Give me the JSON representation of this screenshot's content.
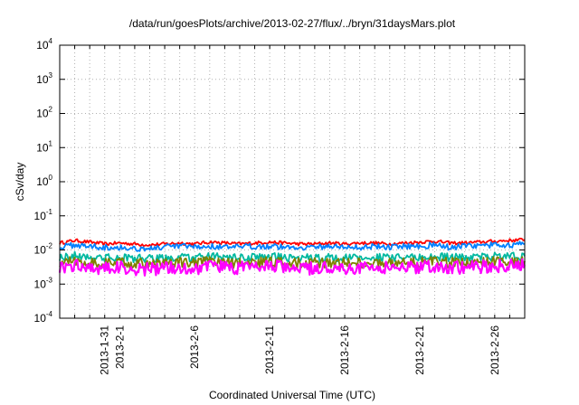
{
  "chart_data": {
    "type": "line",
    "title": "/data/run/goesPlots/archive/2013-02-27/flux/../bryn/31daysMars.plot",
    "xlabel": "Coordinated Universal Time (UTC)",
    "ylabel": "cSv/day",
    "y_scale": "log",
    "ylim": [
      0.0001,
      10000
    ],
    "xlim": [
      "2013-01-28",
      "2013-02-28"
    ],
    "grid": true,
    "legend": "none",
    "y_ticks": [
      {
        "base": "10",
        "exp": "-4",
        "value": 0.0001
      },
      {
        "base": "10",
        "exp": "-3",
        "value": 0.001
      },
      {
        "base": "10",
        "exp": "-2",
        "value": 0.01
      },
      {
        "base": "10",
        "exp": "-1",
        "value": 0.1
      },
      {
        "base": "10",
        "exp": "0",
        "value": 1
      },
      {
        "base": "10",
        "exp": "1",
        "value": 10
      },
      {
        "base": "10",
        "exp": "2",
        "value": 100
      },
      {
        "base": "10",
        "exp": "3",
        "value": 1000
      },
      {
        "base": "10",
        "exp": "4",
        "value": 10000
      }
    ],
    "x_tick_labels": [
      {
        "date": "2013-01-31",
        "label": "2013-1-31"
      },
      {
        "date": "2013-02-01",
        "label": "2013-2-1"
      },
      {
        "date": "2013-02-06",
        "label": "2013-2-6"
      },
      {
        "date": "2013-02-11",
        "label": "2013-2-11"
      },
      {
        "date": "2013-02-16",
        "label": "2013-2-16"
      },
      {
        "date": "2013-02-21",
        "label": "2013-2-21"
      },
      {
        "date": "2013-02-26",
        "label": "2013-2-26"
      }
    ],
    "x_grid_dates": [
      "2013-01-29",
      "2013-01-30",
      "2013-01-31",
      "2013-02-01",
      "2013-02-02",
      "2013-02-03",
      "2013-02-04",
      "2013-02-05",
      "2013-02-06",
      "2013-02-07",
      "2013-02-08",
      "2013-02-09",
      "2013-02-10",
      "2013-02-11",
      "2013-02-12",
      "2013-02-13",
      "2013-02-14",
      "2013-02-15",
      "2013-02-16",
      "2013-02-17",
      "2013-02-18",
      "2013-02-19",
      "2013-02-20",
      "2013-02-21",
      "2013-02-22",
      "2013-02-23",
      "2013-02-24",
      "2013-02-25",
      "2013-02-26",
      "2013-02-27"
    ],
    "series": [
      {
        "color": "#ff0000",
        "values": [
          0.016,
          0.019,
          0.017,
          0.015,
          0.016,
          0.015,
          0.014,
          0.015,
          0.016,
          0.015,
          0.017,
          0.016,
          0.015,
          0.016,
          0.017,
          0.016,
          0.015,
          0.015,
          0.016,
          0.015,
          0.016,
          0.016,
          0.015,
          0.016,
          0.017,
          0.018,
          0.016,
          0.016,
          0.017,
          0.018,
          0.019,
          0.02
        ]
      },
      {
        "color": "#0080ff",
        "values": [
          0.012,
          0.014,
          0.013,
          0.012,
          0.012,
          0.011,
          0.011,
          0.012,
          0.013,
          0.012,
          0.013,
          0.012,
          0.012,
          0.013,
          0.013,
          0.012,
          0.012,
          0.012,
          0.013,
          0.012,
          0.012,
          0.013,
          0.012,
          0.013,
          0.013,
          0.014,
          0.012,
          0.013,
          0.013,
          0.014,
          0.014,
          0.015
        ]
      },
      {
        "color": "#00b8a0",
        "values": [
          0.006,
          0.0068,
          0.0062,
          0.0058,
          0.006,
          0.0057,
          0.0055,
          0.0058,
          0.006,
          0.0058,
          0.0063,
          0.006,
          0.0058,
          0.0061,
          0.0063,
          0.006,
          0.0058,
          0.0058,
          0.006,
          0.0058,
          0.006,
          0.006,
          0.0058,
          0.006,
          0.0062,
          0.0064,
          0.006,
          0.006,
          0.0062,
          0.0064,
          0.0065,
          0.0066
        ]
      },
      {
        "color": "#808000",
        "values": [
          0.0042,
          0.0048,
          0.0044,
          0.0041,
          0.0042,
          0.004,
          0.0039,
          0.0041,
          0.0043,
          0.0041,
          0.0045,
          0.0043,
          0.0041,
          0.0043,
          0.0045,
          0.0043,
          0.0041,
          0.0041,
          0.0043,
          0.0041,
          0.0042,
          0.0043,
          0.0041,
          0.0043,
          0.0044,
          0.0046,
          0.0042,
          0.0043,
          0.0044,
          0.0046,
          0.0046,
          0.0047
        ]
      },
      {
        "color": "#ff00ff",
        "values": [
          0.003,
          0.0036,
          0.0032,
          0.0029,
          0.003,
          0.0028,
          0.0027,
          0.0029,
          0.0031,
          0.0029,
          0.0034,
          0.0031,
          0.0029,
          0.0032,
          0.0034,
          0.0031,
          0.0029,
          0.0029,
          0.0031,
          0.0029,
          0.003,
          0.0031,
          0.0029,
          0.0031,
          0.0032,
          0.0034,
          0.003,
          0.0031,
          0.0032,
          0.0034,
          0.0034,
          0.0036
        ]
      }
    ]
  }
}
